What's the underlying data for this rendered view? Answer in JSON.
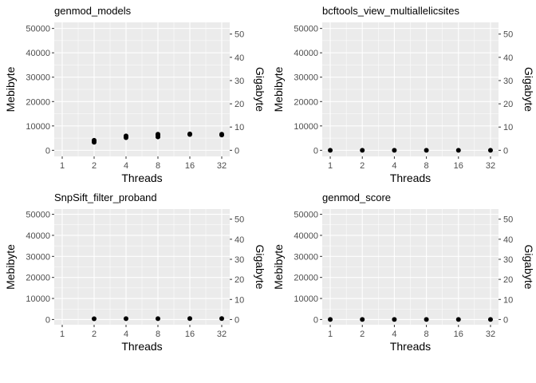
{
  "chart_data": [
    {
      "type": "scatter",
      "title": "genmod_models",
      "xlabel": "Threads",
      "ylabel": "Mebibyte",
      "y2label": "Gigabyte",
      "x_ticks": [
        "1",
        "2",
        "4",
        "8",
        "16",
        "32"
      ],
      "y_ticks": [
        "0",
        "10000",
        "20000",
        "30000",
        "40000",
        "50000"
      ],
      "y2_ticks": [
        "0",
        "10",
        "20",
        "30",
        "40",
        "50"
      ],
      "ylim": [
        -2500,
        52500
      ],
      "y2_factor": 0.001048576,
      "points": [
        {
          "x": 2,
          "y": 3300
        },
        {
          "x": 2,
          "y": 3800
        },
        {
          "x": 2,
          "y": 4100
        },
        {
          "x": 4,
          "y": 5200
        },
        {
          "x": 4,
          "y": 5600
        },
        {
          "x": 4,
          "y": 5900
        },
        {
          "x": 8,
          "y": 5500
        },
        {
          "x": 8,
          "y": 6200
        },
        {
          "x": 8,
          "y": 6600
        },
        {
          "x": 16,
          "y": 6500
        },
        {
          "x": 16,
          "y": 6700
        },
        {
          "x": 32,
          "y": 6300
        },
        {
          "x": 32,
          "y": 6600
        }
      ]
    },
    {
      "type": "scatter",
      "title": "bcftools_view_multiallelicsites",
      "xlabel": "Threads",
      "ylabel": "Mebibyte",
      "y2label": "Gigabyte",
      "x_ticks": [
        "1",
        "2",
        "4",
        "8",
        "16",
        "32"
      ],
      "y_ticks": [
        "0",
        "10000",
        "20000",
        "30000",
        "40000",
        "50000"
      ],
      "y2_ticks": [
        "0",
        "10",
        "20",
        "30",
        "40",
        "50"
      ],
      "ylim": [
        -2500,
        52500
      ],
      "y2_factor": 0.001048576,
      "points": [
        {
          "x": 1,
          "y": 10
        },
        {
          "x": 2,
          "y": 10
        },
        {
          "x": 4,
          "y": 10
        },
        {
          "x": 8,
          "y": 10
        },
        {
          "x": 16,
          "y": 10
        },
        {
          "x": 32,
          "y": 10
        }
      ]
    },
    {
      "type": "scatter",
      "title": "SnpSift_filter_proband",
      "xlabel": "Threads",
      "ylabel": "Mebibyte",
      "y2label": "Gigabyte",
      "x_ticks": [
        "1",
        "2",
        "4",
        "8",
        "16",
        "32"
      ],
      "y_ticks": [
        "0",
        "10000",
        "20000",
        "30000",
        "40000",
        "50000"
      ],
      "y2_ticks": [
        "0",
        "10",
        "20",
        "30",
        "40",
        "50"
      ],
      "ylim": [
        -2500,
        52500
      ],
      "y2_factor": 0.001048576,
      "points": [
        {
          "x": 2,
          "y": 350
        },
        {
          "x": 4,
          "y": 380
        },
        {
          "x": 8,
          "y": 400
        },
        {
          "x": 16,
          "y": 420
        },
        {
          "x": 32,
          "y": 430
        }
      ]
    },
    {
      "type": "scatter",
      "title": "genmod_score",
      "xlabel": "Threads",
      "ylabel": "Mebibyte",
      "y2label": "Gigabyte",
      "x_ticks": [
        "1",
        "2",
        "4",
        "8",
        "16",
        "32"
      ],
      "y_ticks": [
        "0",
        "10000",
        "20000",
        "30000",
        "40000",
        "50000"
      ],
      "y2_ticks": [
        "0",
        "10",
        "20",
        "30",
        "40",
        "50"
      ],
      "ylim": [
        -2500,
        52500
      ],
      "y2_factor": 0.001048576,
      "points": [
        {
          "x": 1,
          "y": 20
        },
        {
          "x": 2,
          "y": 20
        },
        {
          "x": 4,
          "y": 20
        },
        {
          "x": 8,
          "y": 20
        },
        {
          "x": 16,
          "y": 20
        },
        {
          "x": 32,
          "y": 20
        }
      ]
    }
  ]
}
